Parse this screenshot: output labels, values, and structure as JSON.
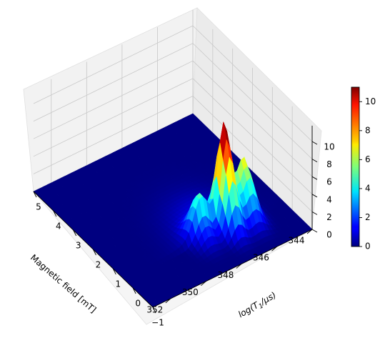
{
  "chart_data": {
    "type": "surface",
    "x_axis": {
      "label": "Magnetic field [mT]",
      "range": [
        344,
        353
      ],
      "ticks": [
        344,
        346,
        348,
        350,
        352
      ]
    },
    "y_axis": {
      "label_prefix": "log(T",
      "label_subscript": "1",
      "label_suffix": "/μs)",
      "range": [
        -1,
        5
      ],
      "ticks": [
        -1,
        0,
        1,
        2,
        3,
        4,
        5
      ]
    },
    "z_axis": {
      "range": [
        0,
        11
      ],
      "ticks": [
        0,
        2,
        4,
        6,
        8,
        10
      ]
    },
    "colorbar": {
      "colormap": "jet",
      "range": [
        0,
        11
      ],
      "ticks": [
        0,
        2,
        4,
        6,
        8,
        10
      ]
    },
    "grid": true,
    "peaks": [
      {
        "field": 347.3,
        "log_t1": 0.45,
        "height": 10.8
      },
      {
        "field": 346.2,
        "log_t1": 0.45,
        "height": 6.6
      },
      {
        "field": 348.6,
        "log_t1": 0.6,
        "height": 3.8
      }
    ],
    "colors": {
      "surface_base": "#00008b",
      "pane": "#f2f2f2",
      "grid": "#c8c8c8"
    }
  }
}
